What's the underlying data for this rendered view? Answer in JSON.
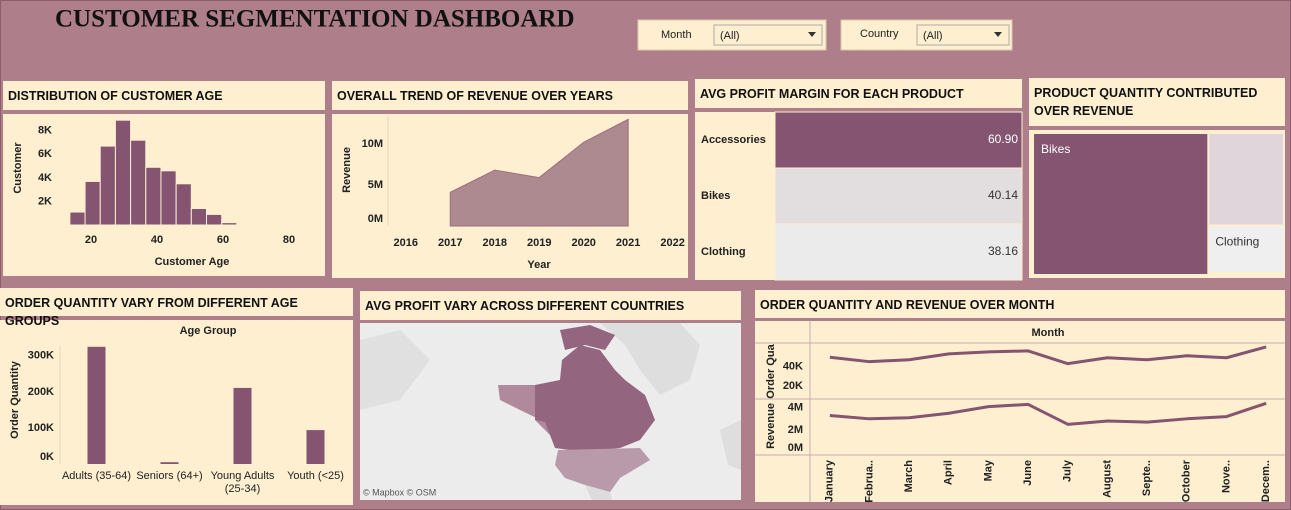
{
  "title": "CUSTOMER SEGMENTATION DASHBOARD",
  "filters": [
    {
      "label": "Month",
      "value": "(All)"
    },
    {
      "label": "Country",
      "value": "(All)"
    }
  ],
  "chart_data": [
    {
      "type": "histogram",
      "title": "DISTRIBUTION OF CUSTOMER AGE",
      "xlabel": "Customer Age",
      "ylabel": "Customer",
      "bins": [
        13.6,
        18.2,
        22.8,
        27.4,
        32,
        36.6,
        41.2,
        45.8,
        50.4,
        55,
        59.6,
        64.2,
        68.8
      ],
      "counts": [
        1100,
        3700,
        6700,
        8900,
        7200,
        4900,
        4600,
        3500,
        1400,
        900,
        200,
        50
      ],
      "color": "#845470",
      "xlim": [
        10,
        85
      ],
      "xticks": [
        20,
        40,
        60,
        80
      ],
      "ylim": [
        0,
        9000
      ],
      "yticks": [
        {
          "value": 2000,
          "label": "2K"
        },
        {
          "value": 4000,
          "label": "4K"
        },
        {
          "value": 6000,
          "label": "6K"
        },
        {
          "value": 8000,
          "label": "8K"
        }
      ]
    },
    {
      "type": "area",
      "title": "OVERALL TREND OF REVENUE OVER YEARS",
      "xlabel": "Year",
      "ylabel": "Revenue",
      "x": [
        2017,
        2018,
        2019,
        2020,
        2021
      ],
      "values": [
        4100000,
        6800000,
        5900000,
        10200000,
        13000000
      ],
      "color": "#ad8a90",
      "xlim": [
        2015.6,
        2022.3
      ],
      "xticks": [
        2016,
        2017,
        2018,
        2019,
        2020,
        2021,
        2022
      ],
      "ylim": [
        0,
        13400000
      ],
      "yticks": [
        {
          "value": 0,
          "label": "0M"
        },
        {
          "value": 5000000,
          "label": "5M"
        },
        {
          "value": 10000000,
          "label": "10M"
        }
      ]
    },
    {
      "type": "highlight_table",
      "title": "AVG PROFIT MARGIN FOR EACH PRODUCT",
      "categories": [
        "Accessories",
        "Bikes",
        "Clothing"
      ],
      "values": [
        60.9,
        40.14,
        38.16
      ],
      "value_labels": [
        "60.90",
        "40.14",
        "38.16"
      ],
      "color_range": [
        "#ebebeb",
        "#845470"
      ]
    },
    {
      "type": "treemap",
      "title": "PRODUCT QUANTITY CONTRIBUTED OVER REVENUE",
      "categories": [
        "Bikes",
        null,
        "Clothing"
      ],
      "values": [
        23.8,
        6.6,
        3.4
      ],
      "colors": [
        "#845470",
        "#e1d5dc",
        "#efefef"
      ]
    },
    {
      "type": "bar",
      "title": "ORDER QUANTITY VARY FROM DIFFERENT AGE GROUPS",
      "xlabel": "Age Group",
      "ylabel": "Order Quantity",
      "categories": [
        "Adults (35-64)",
        "Seniors (64+)",
        "Young Adults (25-34)",
        "Youth (<25)"
      ],
      "values": [
        325000,
        5000,
        211000,
        94000
      ],
      "color": "#845470",
      "ylim": [
        0,
        330000
      ],
      "yticks": [
        {
          "value": 0,
          "label": "0K"
        },
        {
          "value": 100000,
          "label": "100K"
        },
        {
          "value": 200000,
          "label": "200K"
        },
        {
          "value": 300000,
          "label": "300K"
        }
      ]
    },
    {
      "type": "map",
      "title": "AVG PROFIT VARY ACROSS DIFFERENT COUNTRIES",
      "attribution": "© Mapbox © OSM"
    },
    {
      "type": "line",
      "title": "ORDER QUANTITY AND REVENUE OVER MONTH",
      "xlabel": "Month",
      "categories": [
        "January",
        "Februa..",
        "March",
        "April",
        "May",
        "June",
        "July",
        "August",
        "Septe..",
        "October",
        "Nove..",
        "Decem.."
      ],
      "series": [
        {
          "name": "Order Qua",
          "color": "#845470",
          "values": [
            49500,
            45000,
            47000,
            53000,
            55000,
            56000,
            43000,
            49000,
            47000,
            51000,
            49000,
            60000
          ]
        },
        {
          "name": "Revenue",
          "color": "#845470",
          "axis": "y2",
          "values": [
            3300000,
            3000000,
            3100000,
            3500000,
            4100000,
            4300000,
            2500000,
            2800000,
            2700000,
            3000000,
            3200000,
            4400000
          ]
        }
      ],
      "ylim": [
        8000,
        62000
      ],
      "yticks": [
        {
          "value": 20000,
          "label": "20K"
        },
        {
          "value": 40000,
          "label": "40K"
        }
      ],
      "y2lim": [
        0,
        4700000
      ],
      "y2ticks": [
        {
          "value": 0,
          "label": "0M"
        },
        {
          "value": 2000000,
          "label": "2M"
        },
        {
          "value": 4000000,
          "label": "4M"
        }
      ]
    }
  ]
}
